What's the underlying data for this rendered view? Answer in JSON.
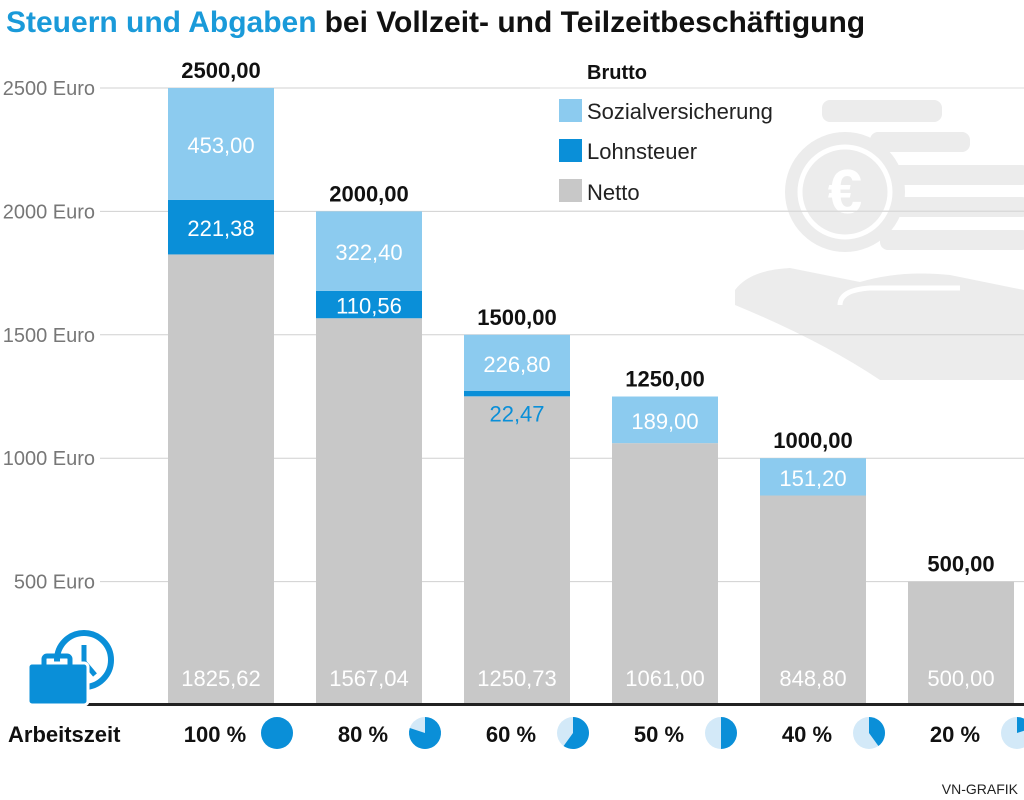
{
  "title_part1": "Steuern und Abgaben",
  "title_part2": "bei Vollzeit- und Teilzeitbeschäftigung",
  "credit": "VN-GRAFIK",
  "colors": {
    "sozial": "#8ccbef",
    "lohn": "#0a8fd8",
    "netto": "#c8c8c8",
    "title_blue": "#1a9ad9",
    "pie_light": "#d3e9f8"
  },
  "chart_data": {
    "type": "bar",
    "stacked": true,
    "ylim": [
      0,
      2500
    ],
    "yticks": [
      500,
      1000,
      1500,
      2000,
      2500
    ],
    "ytick_labels": [
      "500 Euro",
      "1000 Euro",
      "1500 Euro",
      "2000 Euro",
      "2500 Euro"
    ],
    "grid": true,
    "legend_title": "Brutto",
    "legend_position": "top-right",
    "xlabel": "Arbeitszeit",
    "categories": [
      "100 %",
      "80 %",
      "60 %",
      "50 %",
      "40 %",
      "20 %"
    ],
    "arbeitszeit_fraction": [
      1.0,
      0.8,
      0.6,
      0.5,
      0.4,
      0.2
    ],
    "series": [
      {
        "name": "Netto",
        "key": "netto",
        "values": [
          1825.62,
          1567.04,
          1250.73,
          1061.0,
          848.8,
          500.0
        ],
        "labels": [
          "1825,62",
          "1567,04",
          "1250,73",
          "1061,00",
          "848,80",
          "500,00"
        ]
      },
      {
        "name": "Lohnsteuer",
        "key": "lohn",
        "values": [
          221.38,
          110.56,
          22.47,
          0,
          0,
          0
        ],
        "labels": [
          "221,38",
          "110,56",
          "22,47",
          "",
          "",
          ""
        ]
      },
      {
        "name": "Sozialversicherung",
        "key": "sozial",
        "values": [
          453.0,
          322.4,
          226.8,
          189.0,
          151.2,
          0
        ],
        "labels": [
          "453,00",
          "322,40",
          "226,80",
          "189,00",
          "151,20",
          ""
        ]
      }
    ],
    "totals": [
      2500,
      2000,
      1500,
      1250,
      1000,
      500
    ],
    "total_labels": [
      "2500,00",
      "2000,00",
      "1500,00",
      "1250,00",
      "1000,00",
      "500,00"
    ]
  }
}
